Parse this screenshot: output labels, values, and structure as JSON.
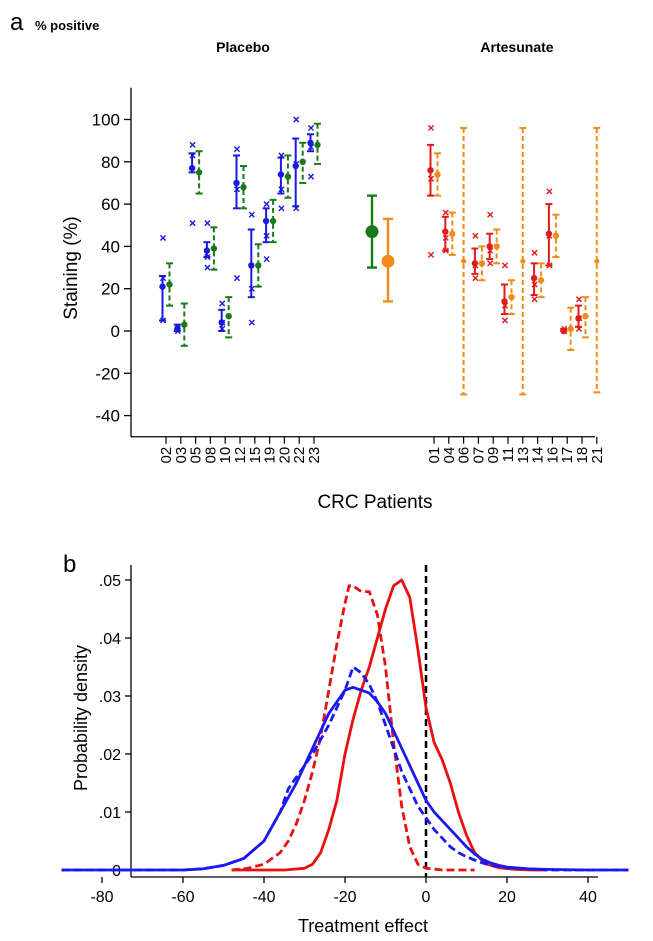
{
  "figure": {
    "panel_a_letter": "a",
    "panel_a_unit": "% positive",
    "panel_b_letter": "b"
  },
  "colors": {
    "placebo_measured": "#1a1adf",
    "placebo_model": "#1a7a1a",
    "artesunate_measured": "#e01b1b",
    "artesunate_model": "#f08c1a",
    "axis": "#000000",
    "zero_line": "#000000"
  },
  "chart_data": [
    {
      "type": "scatter",
      "panel": "a",
      "group_titles": [
        "Placebo",
        "Artesunate"
      ],
      "ylabel": "Staining  (%)",
      "xlabel": "CRC Patients",
      "ylim": [
        -50,
        115
      ],
      "yticks": [
        100,
        80,
        60,
        40,
        20,
        0,
        -20,
        -40
      ],
      "ytick_labels": [
        "100",
        "80",
        "60",
        "40",
        "20",
        "0",
        "-20",
        "-40"
      ],
      "grid": false,
      "placebo": {
        "patients": [
          {
            "id": "02",
            "measured": {
              "mean": 21,
              "lo": 5,
              "hi": 26,
              "points": [
                44,
                25,
                5
              ]
            },
            "model": {
              "mean": 22,
              "lo": 12,
              "hi": 32
            }
          },
          {
            "id": "03",
            "measured": {
              "mean": 1,
              "lo": 0,
              "hi": 3,
              "points": [
                0,
                2,
                1
              ]
            },
            "model": {
              "mean": 3,
              "lo": -7,
              "hi": 13
            }
          },
          {
            "id": "05",
            "measured": {
              "mean": 77,
              "lo": 75,
              "hi": 84,
              "points": [
                88,
                83,
                51
              ]
            },
            "model": {
              "mean": 75,
              "lo": 65,
              "hi": 85
            }
          },
          {
            "id": "08",
            "measured": {
              "mean": 38,
              "lo": 35,
              "hi": 42,
              "points": [
                51,
                35,
                30
              ]
            },
            "model": {
              "mean": 39,
              "lo": 29,
              "hi": 49
            }
          },
          {
            "id": "10",
            "measured": {
              "mean": 4,
              "lo": 0,
              "hi": 10,
              "points": [
                13,
                4,
                1
              ]
            },
            "model": {
              "mean": 7,
              "lo": -3,
              "hi": 16
            }
          },
          {
            "id": "12",
            "measured": {
              "mean": 70,
              "lo": 58,
              "hi": 83,
              "points": [
                86,
                67,
                25
              ]
            },
            "model": {
              "mean": 68,
              "lo": 58,
              "hi": 78
            }
          },
          {
            "id": "15",
            "measured": {
              "mean": 31,
              "lo": 16,
              "hi": 48,
              "points": [
                55,
                20,
                4
              ]
            },
            "model": {
              "mean": 31,
              "lo": 21,
              "hi": 41
            }
          },
          {
            "id": "19",
            "measured": {
              "mean": 52,
              "lo": 42,
              "hi": 58,
              "points": [
                60,
                45,
                34
              ]
            },
            "model": {
              "mean": 52,
              "lo": 42,
              "hi": 62
            }
          },
          {
            "id": "20",
            "measured": {
              "mean": 74,
              "lo": 65,
              "hi": 82,
              "points": [
                83,
                67,
                58
              ]
            },
            "model": {
              "mean": 73,
              "lo": 63,
              "hi": 83
            }
          },
          {
            "id": "22",
            "measured": {
              "mean": 78,
              "lo": 59,
              "hi": 91,
              "points": [
                100,
                79,
                58
              ]
            },
            "model": {
              "mean": 80,
              "lo": 70,
              "hi": 89
            }
          },
          {
            "id": "23",
            "measured": {
              "mean": 89,
              "lo": 85,
              "hi": 93,
              "points": [
                96,
                87,
                73
              ]
            },
            "model": {
              "mean": 88,
              "lo": 79,
              "hi": 98
            }
          }
        ],
        "group_mean_measured": {
          "mean": 47,
          "lo": 30,
          "hi": 64
        },
        "group_mean_model": {
          "mean": 33,
          "lo": 14,
          "hi": 53
        }
      },
      "artesunate": {
        "patients": [
          {
            "id": "01",
            "measured": {
              "mean": 76,
              "lo": 64,
              "hi": 88,
              "points": [
                96,
                72,
                36
              ]
            },
            "model": {
              "mean": 74,
              "lo": 64,
              "hi": 84
            }
          },
          {
            "id": "04",
            "measured": {
              "mean": 47,
              "lo": 38,
              "hi": 54,
              "points": [
                56,
                44,
                38
              ]
            },
            "model": {
              "mean": 46,
              "lo": 36,
              "hi": 56
            }
          },
          {
            "id": "06",
            "measured": null,
            "model": {
              "mean": 33,
              "lo": -30,
              "hi": 96
            }
          },
          {
            "id": "07",
            "measured": {
              "mean": 32,
              "lo": 27,
              "hi": 39,
              "points": [
                45,
                31,
                25
              ]
            },
            "model": {
              "mean": 32,
              "lo": 24,
              "hi": 40
            }
          },
          {
            "id": "09",
            "measured": {
              "mean": 40,
              "lo": 34,
              "hi": 46,
              "points": [
                55,
                38,
                32
              ]
            },
            "model": {
              "mean": 40,
              "lo": 32,
              "hi": 48
            }
          },
          {
            "id": "11",
            "measured": {
              "mean": 14,
              "lo": 8,
              "hi": 22,
              "points": [
                31,
                12,
                5
              ]
            },
            "model": {
              "mean": 16,
              "lo": 8,
              "hi": 24
            }
          },
          {
            "id": "13",
            "measured": null,
            "model": {
              "mean": 33,
              "lo": -30,
              "hi": 96
            }
          },
          {
            "id": "14",
            "measured": {
              "mean": 25,
              "lo": 17,
              "hi": 32,
              "points": [
                37,
                22,
                15
              ]
            },
            "model": {
              "mean": 24,
              "lo": 16,
              "hi": 32
            }
          },
          {
            "id": "16",
            "measured": {
              "mean": 46,
              "lo": 31,
              "hi": 60,
              "points": [
                66,
                45,
                31
              ]
            },
            "model": {
              "mean": 45,
              "lo": 35,
              "hi": 55
            }
          },
          {
            "id": "17",
            "measured": {
              "mean": 0,
              "lo": 0,
              "hi": 1,
              "points": [
                1,
                0
              ]
            },
            "model": {
              "mean": 1,
              "lo": -9,
              "hi": 11
            }
          },
          {
            "id": "18",
            "measured": {
              "mean": 6,
              "lo": 2,
              "hi": 12,
              "points": [
                15,
                6,
                1
              ]
            },
            "model": {
              "mean": 7,
              "lo": -3,
              "hi": 16
            }
          },
          {
            "id": "21",
            "measured": null,
            "model": {
              "mean": 33,
              "lo": -29,
              "hi": 96
            }
          }
        ]
      }
    },
    {
      "type": "line",
      "panel": "b",
      "xlabel": "Treatment effect",
      "ylabel": "Probability density",
      "xlim": [
        -90,
        50
      ],
      "ylim": [
        -0.001,
        0.051
      ],
      "xticks": [
        -80,
        -60,
        -40,
        -20,
        0,
        20,
        40
      ],
      "xtick_labels": [
        "-80",
        "-60",
        "-40",
        "-20",
        "0",
        "20",
        "40"
      ],
      "yticks": [
        0,
        0.01,
        0.02,
        0.03,
        0.04,
        0.05
      ],
      "ytick_labels": [
        "0",
        ".01",
        ".02",
        ".03",
        ".04",
        ".05"
      ],
      "reference_line_x": 0,
      "series": [
        {
          "color": "red",
          "style": "solid",
          "x": [
            -48,
            -40,
            -35,
            -30,
            -28,
            -26,
            -24,
            -22,
            -20,
            -18,
            -16,
            -14,
            -12,
            -10,
            -8,
            -6,
            -4,
            -2,
            0,
            2,
            4,
            6,
            8,
            10,
            12,
            14,
            16,
            18,
            22,
            26,
            30
          ],
          "y": [
            0,
            0,
            0,
            0.0003,
            0.001,
            0.003,
            0.007,
            0.012,
            0.02,
            0.026,
            0.031,
            0.035,
            0.04,
            0.045,
            0.049,
            0.05,
            0.047,
            0.038,
            0.028,
            0.022,
            0.019,
            0.015,
            0.01,
            0.006,
            0.003,
            0.0015,
            0.0008,
            0.0004,
            0.0001,
            0,
            0
          ]
        },
        {
          "color": "red",
          "style": "dashed",
          "x": [
            -48,
            -44,
            -40,
            -36,
            -34,
            -32,
            -30,
            -28,
            -26,
            -24,
            -22,
            -20,
            -19,
            -18,
            -16,
            -14,
            -12,
            -10,
            -8,
            -6,
            -4,
            -2,
            0,
            4,
            8,
            12
          ],
          "y": [
            0,
            0.0003,
            0.001,
            0.003,
            0.005,
            0.008,
            0.012,
            0.017,
            0.023,
            0.031,
            0.039,
            0.046,
            0.049,
            0.049,
            0.048,
            0.048,
            0.044,
            0.035,
            0.022,
            0.011,
            0.004,
            0.001,
            0.0003,
            0,
            0,
            0
          ]
        },
        {
          "color": "blue",
          "style": "solid",
          "x": [
            -90,
            -80,
            -70,
            -60,
            -55,
            -50,
            -45,
            -40,
            -36,
            -32,
            -28,
            -24,
            -20,
            -18,
            -16,
            -14,
            -12,
            -10,
            -8,
            -6,
            -4,
            -2,
            0,
            2,
            4,
            6,
            8,
            10,
            12,
            14,
            16,
            18,
            20,
            25,
            30,
            40,
            50
          ],
          "y": [
            0,
            0,
            0,
            0,
            0.0002,
            0.0008,
            0.002,
            0.005,
            0.01,
            0.015,
            0.021,
            0.027,
            0.031,
            0.0315,
            0.031,
            0.0305,
            0.029,
            0.027,
            0.024,
            0.021,
            0.018,
            0.015,
            0.012,
            0.01,
            0.0085,
            0.007,
            0.0055,
            0.004,
            0.0028,
            0.0018,
            0.0012,
            0.0008,
            0.0005,
            0.0002,
            0.0001,
            0,
            0
          ]
        },
        {
          "color": "blue",
          "style": "dashed",
          "x": [
            -90,
            -60,
            -55,
            -50,
            -45,
            -40,
            -36,
            -34,
            -32,
            -28,
            -24,
            -20,
            -18,
            -16,
            -14,
            -12,
            -10,
            -8,
            -6,
            -4,
            -2,
            0,
            2,
            4,
            6,
            8,
            10,
            12,
            14,
            16,
            20,
            25,
            30,
            50
          ],
          "y": [
            0,
            0,
            0.0002,
            0.0008,
            0.002,
            0.005,
            0.01,
            0.014,
            0.016,
            0.02,
            0.025,
            0.031,
            0.035,
            0.034,
            0.032,
            0.029,
            0.025,
            0.021,
            0.017,
            0.014,
            0.011,
            0.009,
            0.007,
            0.0055,
            0.004,
            0.003,
            0.0023,
            0.0017,
            0.0012,
            0.0008,
            0.0004,
            0.0002,
            0,
            0
          ]
        }
      ]
    }
  ]
}
